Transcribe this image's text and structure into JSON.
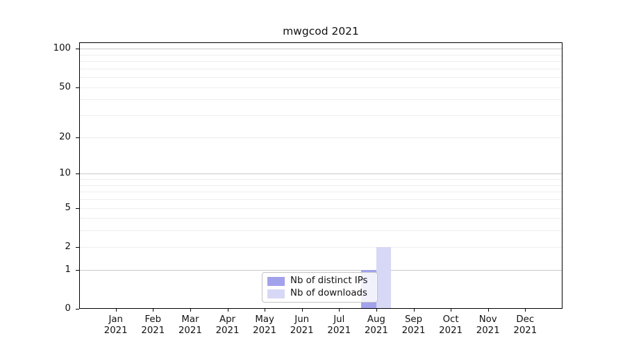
{
  "chart_data": {
    "type": "bar",
    "title": "mwgcod 2021",
    "categories": [
      "Jan 2021",
      "Feb 2021",
      "Mar 2021",
      "Apr 2021",
      "May 2021",
      "Jun 2021",
      "Jul 2021",
      "Aug 2021",
      "Sep 2021",
      "Oct 2021",
      "Nov 2021",
      "Dec 2021"
    ],
    "series": [
      {
        "name": "Nb of distinct IPs",
        "color": "#a2a2ec",
        "values": [
          0,
          0,
          0,
          0,
          0,
          0,
          0,
          1,
          0,
          0,
          0,
          0
        ]
      },
      {
        "name": "Nb of downloads",
        "color": "#d7d7f6",
        "values": [
          0,
          0,
          0,
          0,
          0,
          0,
          0,
          2,
          0,
          0,
          0,
          0
        ]
      }
    ],
    "xlabel": "",
    "ylabel": "",
    "y_ticks": [
      0,
      1,
      2,
      5,
      10,
      20,
      50,
      100
    ],
    "y_scale": "log1p",
    "ylim": [
      0,
      112
    ],
    "grid": "horizontal major+minor",
    "legend_position": "lower center"
  },
  "colors": {
    "major_grid": "#c9c9c9",
    "minor_grid": "#ededed",
    "axis": "#000000",
    "legend_border": "#c3c3c3"
  }
}
